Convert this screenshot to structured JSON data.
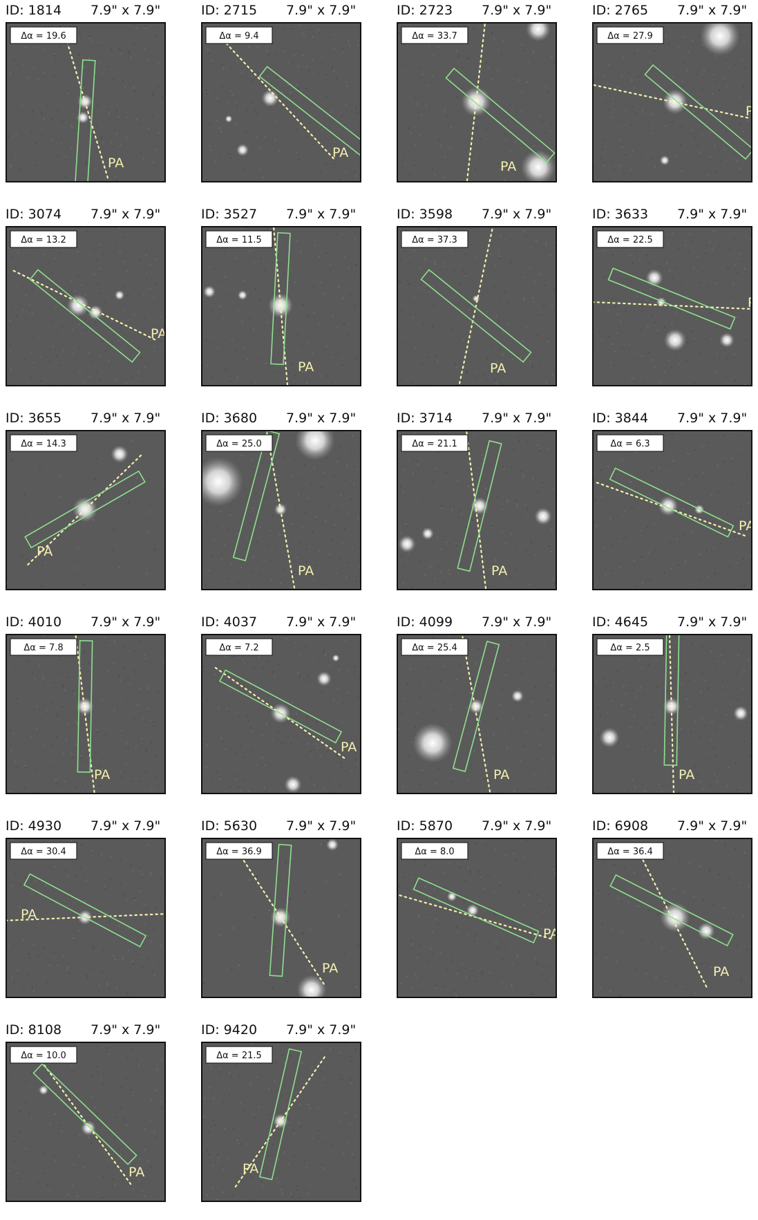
{
  "figure": {
    "size_label": "7.9\" x 7.9\"",
    "pa_label": "PA",
    "delta_symbol": "Δα",
    "colors": {
      "background": "#5a5a5a",
      "frame": "#111111",
      "slit": "#8fe08f",
      "pa_line": "#f5f0b0"
    },
    "panels": [
      {
        "id": "ID: 1814",
        "delta": "Δα = 19.6",
        "delta_value": 19.6
      },
      {
        "id": "ID: 2715",
        "delta": "Δα = 9.4",
        "delta_value": 9.4
      },
      {
        "id": "ID: 2723",
        "delta": "Δα = 33.7",
        "delta_value": 33.7
      },
      {
        "id": "ID: 2765",
        "delta": "Δα = 27.9",
        "delta_value": 27.9
      },
      {
        "id": "ID: 3074",
        "delta": "Δα = 13.2",
        "delta_value": 13.2
      },
      {
        "id": "ID: 3527",
        "delta": "Δα = 11.5",
        "delta_value": 11.5
      },
      {
        "id": "ID: 3598",
        "delta": "Δα = 37.3",
        "delta_value": 37.3
      },
      {
        "id": "ID: 3633",
        "delta": "Δα = 22.5",
        "delta_value": 22.5
      },
      {
        "id": "ID: 3655",
        "delta": "Δα = 14.3",
        "delta_value": 14.3
      },
      {
        "id": "ID: 3680",
        "delta": "Δα = 25.0",
        "delta_value": 25.0
      },
      {
        "id": "ID: 3714",
        "delta": "Δα = 21.1",
        "delta_value": 21.1
      },
      {
        "id": "ID: 3844",
        "delta": "Δα = 6.3",
        "delta_value": 6.3
      },
      {
        "id": "ID: 4010",
        "delta": "Δα = 7.8",
        "delta_value": 7.8
      },
      {
        "id": "ID: 4037",
        "delta": "Δα = 7.2",
        "delta_value": 7.2
      },
      {
        "id": "ID: 4099",
        "delta": "Δα = 25.4",
        "delta_value": 25.4
      },
      {
        "id": "ID: 4645",
        "delta": "Δα = 2.5",
        "delta_value": 2.5
      },
      {
        "id": "ID: 4930",
        "delta": "Δα = 30.4",
        "delta_value": 30.4
      },
      {
        "id": "ID: 5630",
        "delta": "Δα = 36.9",
        "delta_value": 36.9
      },
      {
        "id": "ID: 5870",
        "delta": "Δα = 8.0",
        "delta_value": 8.0
      },
      {
        "id": "ID: 6908",
        "delta": "Δα = 36.4",
        "delta_value": 36.4
      },
      {
        "id": "ID: 8108",
        "delta": "Δα = 10.0",
        "delta_value": 10.0
      },
      {
        "id": "ID: 9420",
        "delta": "Δα = 21.5",
        "delta_value": 21.5
      }
    ]
  }
}
